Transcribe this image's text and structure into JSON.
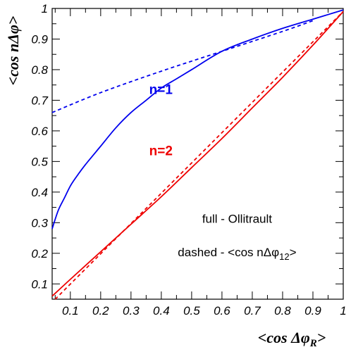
{
  "chart_data": {
    "type": "line",
    "xlabel": "<cos ΔφR>",
    "xlabel_parts": {
      "main": "<cos Δφ",
      "sub": "R",
      "close": ">"
    },
    "ylabel": "<cos nΔφ>",
    "xlim": [
      0.04,
      1.0
    ],
    "ylim": [
      0.05,
      1.0
    ],
    "x_ticks": [
      "0.1",
      "0.2",
      "0.3",
      "0.4",
      "0.5",
      "0.6",
      "0.7",
      "0.8",
      "0.9",
      "1"
    ],
    "y_ticks": [
      "0.1",
      "0.2",
      "0.3",
      "0.4",
      "0.5",
      "0.6",
      "0.7",
      "0.8",
      "0.9",
      "1"
    ],
    "x_tick_values": [
      0.1,
      0.2,
      0.3,
      0.4,
      0.5,
      0.6,
      0.7,
      0.8,
      0.9,
      1.0
    ],
    "y_tick_values": [
      0.1,
      0.2,
      0.3,
      0.4,
      0.5,
      0.6,
      0.7,
      0.8,
      0.9,
      1.0
    ],
    "grid": false,
    "series": [
      {
        "color": "#0000ee",
        "style": "solid",
        "x": [
          0.04,
          0.06,
          0.08,
          0.1,
          0.12,
          0.15,
          0.2,
          0.25,
          0.3,
          0.35,
          0.4,
          0.45,
          0.5,
          0.6,
          0.7,
          0.8,
          0.9,
          0.95,
          1.0
        ],
        "y": [
          0.28,
          0.34,
          0.38,
          0.42,
          0.45,
          0.49,
          0.55,
          0.61,
          0.66,
          0.7,
          0.74,
          0.77,
          0.8,
          0.86,
          0.9,
          0.935,
          0.965,
          0.98,
          0.995
        ]
      },
      {
        "color": "#0000ee",
        "style": "dashed",
        "x": [
          0.04,
          0.2,
          0.4,
          0.6,
          0.8,
          0.9
        ],
        "y": [
          0.66,
          0.725,
          0.795,
          0.86,
          0.925,
          0.96
        ]
      },
      {
        "color": "#ee0000",
        "style": "solid",
        "x": [
          0.04,
          0.1,
          0.2,
          0.3,
          0.4,
          0.5,
          0.6,
          0.7,
          0.8,
          0.9,
          1.0
        ],
        "y": [
          0.06,
          0.115,
          0.205,
          0.295,
          0.385,
          0.48,
          0.575,
          0.675,
          0.775,
          0.88,
          0.99
        ]
      },
      {
        "color": "#ee0000",
        "style": "dashed",
        "x": [
          0.05,
          1.0
        ],
        "y": [
          0.05,
          0.99
        ]
      }
    ],
    "annotations": [
      {
        "text": "n=1",
        "color": "#0000ee",
        "x": 0.36,
        "y": 0.72
      },
      {
        "text": "n=2",
        "color": "#ee0000",
        "x": 0.36,
        "y": 0.52
      },
      {
        "text": "full - Ollitrault",
        "color": "#000000",
        "x": 0.65,
        "y": 0.3
      },
      {
        "text": "dashed - <cos nΔφ12>",
        "color": "#000000",
        "x": 0.65,
        "y": 0.19,
        "parts": {
          "main": "dashed - <cos nΔφ",
          "sub": "12",
          "close": ">"
        }
      }
    ]
  }
}
